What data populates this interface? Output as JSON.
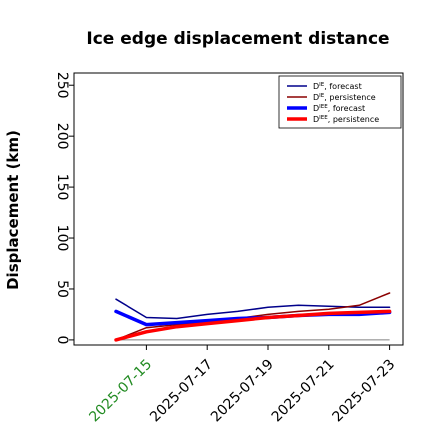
{
  "chart_data": {
    "type": "line",
    "title": "Ice edge displacement distance",
    "ylabel": "Displacement (km)",
    "xlabel": "",
    "ylim": [
      -5,
      262
    ],
    "yticks": [
      0,
      50,
      100,
      150,
      200,
      250
    ],
    "x": [
      "2025-07-14",
      "2025-07-15",
      "2025-07-16",
      "2025-07-17",
      "2025-07-18",
      "2025-07-19",
      "2025-07-20",
      "2025-07-21",
      "2025-07-22",
      "2025-07-23"
    ],
    "xticks": [
      "2025-07-15",
      "2025-07-17",
      "2025-07-19",
      "2025-07-21",
      "2025-07-23"
    ],
    "highlight_tick": "2025-07-15",
    "highlight_color": "#228b22",
    "zero_line": true,
    "legend_position": "top-right",
    "series": [
      {
        "name": "D^IE_forecast",
        "base": "D",
        "sup": "IE",
        "suffix": "forecast",
        "color": "#00008b",
        "width": 1.5,
        "values": [
          40,
          22,
          21,
          25,
          28,
          32,
          34,
          33,
          32,
          32
        ]
      },
      {
        "name": "D^IE_persistence",
        "base": "D",
        "sup": "IE",
        "suffix": "persistence",
        "color": "#8b0000",
        "width": 1.5,
        "values": [
          0,
          12,
          15,
          18,
          21,
          25,
          28,
          30,
          34,
          46
        ]
      },
      {
        "name": "D^IEE_forecast",
        "base": "D",
        "sup": "IEE",
        "suffix": "forecast",
        "color": "#0000ff",
        "width": 3.5,
        "values": [
          28,
          15,
          17,
          19,
          21,
          22,
          24,
          25,
          25,
          27
        ]
      },
      {
        "name": "D^IEE_persistence",
        "base": "D",
        "sup": "IEE",
        "suffix": "persistence",
        "color": "#ff0000",
        "width": 3.5,
        "values": [
          0,
          8,
          13,
          16,
          19,
          22,
          24,
          26,
          27,
          28
        ]
      }
    ]
  }
}
